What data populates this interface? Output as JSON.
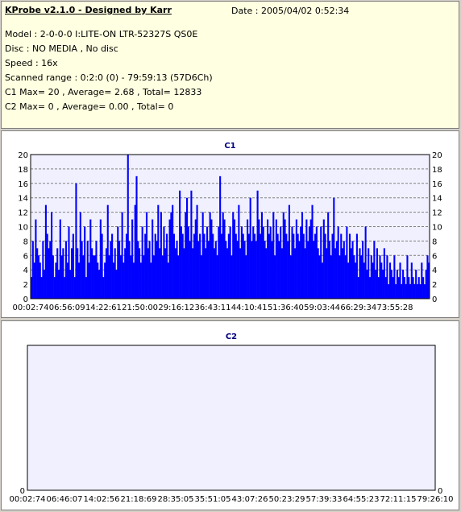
{
  "info": {
    "title": "KProbe v2.1.0 - Designed by Karr",
    "date": "Date : 2005/04/02 0:52:34",
    "model": "Model : 2-0-0-0 I:LITE-ON LTR-52327S        QS0E",
    "disc": "Disc : NO MEDIA , No disc",
    "speed": "Speed : 16x",
    "range": "Scanned range : 0:2:0 (0) - 79:59:13 (57D6Ch)",
    "c1": "C1 Max= 20 , Average= 2.68 , Total= 12833",
    "c2": "C2 Max= 0 , Average= 0.00 , Total= 0"
  },
  "colors": {
    "bar": "#0000ff",
    "plot_bg": "#f0f0ff",
    "title": "#000080",
    "info_bg": "#ffffe1"
  },
  "chart_data": [
    {
      "type": "bar",
      "title": "C1",
      "ylim": [
        0,
        20
      ],
      "yticks": [
        "0",
        "2",
        "4",
        "6",
        "8",
        "10",
        "12",
        "14",
        "16",
        "18",
        "20"
      ],
      "xticks": [
        "00:02:74",
        "06:56:09",
        "14:22:61",
        "21:50:00",
        "29:16:12",
        "36:43:11",
        "44:10:41",
        "51:36:40",
        "59:03:44",
        "66:29:34",
        "73:55:28"
      ],
      "max": 20,
      "average": 2.68,
      "values": [
        3,
        8,
        5,
        11,
        7,
        6,
        5,
        3,
        8,
        4,
        13,
        9,
        7,
        8,
        12,
        6,
        3,
        5,
        7,
        4,
        11,
        6,
        7,
        3,
        8,
        5,
        10,
        4,
        7,
        9,
        3,
        16,
        7,
        5,
        12,
        8,
        6,
        10,
        3,
        8,
        5,
        11,
        7,
        6,
        6,
        8,
        5,
        4,
        11,
        9,
        3,
        5,
        7,
        13,
        6,
        8,
        9,
        5,
        7,
        4,
        10,
        8,
        6,
        12,
        5,
        7,
        9,
        20,
        8,
        6,
        11,
        5,
        13,
        17,
        8,
        7,
        5,
        10,
        6,
        9,
        12,
        7,
        8,
        5,
        11,
        6,
        9,
        8,
        13,
        7,
        12,
        6,
        10,
        7,
        9,
        5,
        11,
        12,
        13,
        9,
        7,
        8,
        6,
        15,
        10,
        9,
        7,
        12,
        14,
        10,
        8,
        15,
        7,
        9,
        11,
        13,
        8,
        9,
        6,
        12,
        9,
        7,
        10,
        8,
        12,
        11,
        9,
        7,
        8,
        6,
        10,
        17,
        9,
        12,
        11,
        8,
        7,
        9,
        10,
        6,
        12,
        11,
        9,
        8,
        13,
        7,
        10,
        9,
        8,
        6,
        11,
        9,
        14,
        8,
        10,
        9,
        8,
        15,
        11,
        9,
        12,
        10,
        8,
        7,
        11,
        9,
        10,
        8,
        12,
        6,
        11,
        9,
        8,
        10,
        7,
        12,
        11,
        9,
        8,
        13,
        6,
        10,
        9,
        7,
        11,
        9,
        8,
        10,
        12,
        9,
        7,
        11,
        8,
        10,
        11,
        13,
        8,
        9,
        10,
        7,
        6,
        10,
        5,
        11,
        9,
        7,
        12,
        8,
        6,
        9,
        14,
        7,
        8,
        10,
        6,
        9,
        7,
        8,
        6,
        10,
        5,
        9,
        7,
        8,
        6,
        5,
        9,
        3,
        7,
        6,
        8,
        5,
        10,
        4,
        7,
        3,
        6,
        5,
        8,
        4,
        7,
        3,
        6,
        5,
        4,
        7,
        3,
        6,
        2,
        5,
        4,
        3,
        6,
        2,
        4,
        3,
        5,
        2,
        4,
        3,
        2,
        6,
        3,
        2,
        5,
        3,
        2,
        4,
        2,
        3,
        2,
        5,
        3,
        2,
        4,
        6,
        5
      ]
    },
    {
      "type": "bar",
      "title": "C2",
      "ylim": [
        0,
        1
      ],
      "yticks": [
        "0"
      ],
      "xticks": [
        "00:02:74",
        "06:46:07",
        "14:02:56",
        "21:18:69",
        "28:35:05",
        "35:51:05",
        "43:07:26",
        "50:23:29",
        "57:39:33",
        "64:55:23",
        "72:11:15",
        "79:26:10"
      ],
      "max": 0,
      "average": 0.0,
      "values": []
    }
  ]
}
